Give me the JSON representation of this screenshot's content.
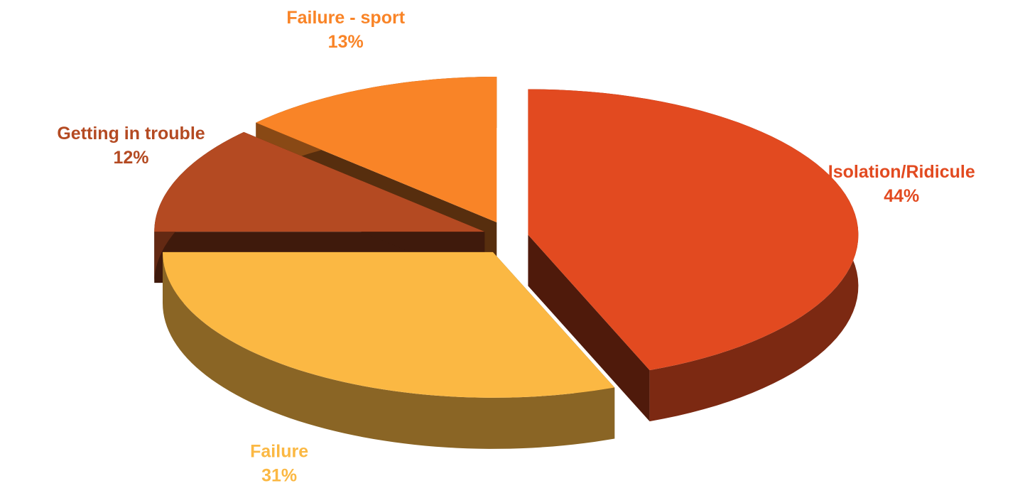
{
  "chart_data": {
    "type": "pie",
    "categories": [
      "Isolation/Ridicule",
      "Failure",
      "Getting in trouble",
      "Failure - sport"
    ],
    "values": [
      44,
      31,
      12,
      13
    ],
    "value_labels": [
      "44%",
      "31%",
      "12%",
      "13%"
    ],
    "colors": [
      "#e24a20",
      "#fbb843",
      "#b44a22",
      "#f98427"
    ]
  }
}
